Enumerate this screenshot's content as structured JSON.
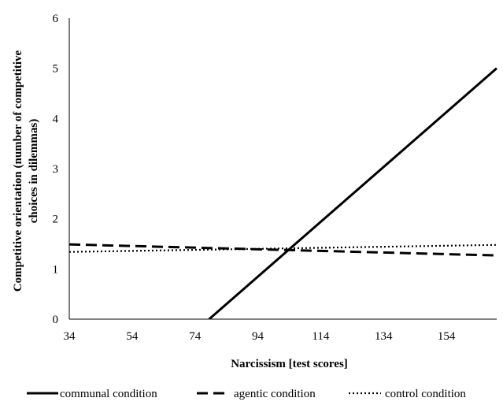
{
  "chart_data": {
    "type": "line",
    "title": "",
    "xlabel": "Narcissism [test scores]",
    "ylabel_lines": [
      "Competitive orientation (number of competitive",
      "choices in dilemmas)"
    ],
    "xlim": [
      34,
      170
    ],
    "ylim": [
      0,
      6
    ],
    "x_ticks": [
      34,
      54,
      74,
      94,
      114,
      134,
      154
    ],
    "y_ticks": [
      0,
      1,
      2,
      3,
      4,
      5,
      6
    ],
    "grid": false,
    "legend_position": "bottom",
    "series": [
      {
        "name": "communal condition",
        "style": "solid",
        "x": [
          78.5,
          170
        ],
        "y": [
          0,
          5.0
        ]
      },
      {
        "name": "agentic condition",
        "style": "dashed",
        "x": [
          34,
          170
        ],
        "y": [
          1.49,
          1.27
        ]
      },
      {
        "name": "control condition",
        "style": "dotted",
        "x": [
          34,
          170
        ],
        "y": [
          1.34,
          1.48
        ]
      }
    ]
  },
  "colors": {
    "line": "#000000",
    "axis": "#000000",
    "background": "#ffffff"
  }
}
